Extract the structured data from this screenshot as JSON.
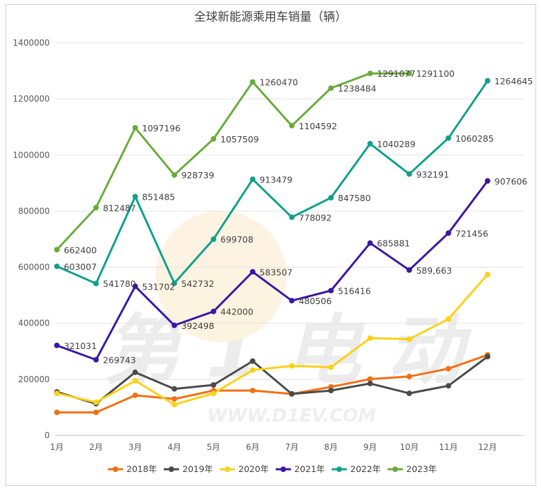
{
  "chart_data": {
    "type": "line",
    "title": "全球新能源乘用车销量（辆）",
    "categories": [
      "1月",
      "2月",
      "3月",
      "4月",
      "5月",
      "6月",
      "7月",
      "8月",
      "9月",
      "10月",
      "11月",
      "12月"
    ],
    "ylim": [
      0,
      1400000
    ],
    "yticks": [
      "0",
      "200000",
      "400000",
      "600000",
      "800000",
      "1000000",
      "1200000",
      "1400000"
    ],
    "grid": true,
    "legend_position": "bottom",
    "series": [
      {
        "name": "2018年",
        "color": "#f36f12",
        "values": [
          82000,
          82000,
          143000,
          130000,
          160000,
          160000,
          148000,
          173000,
          201000,
          210000,
          238000,
          287000
        ]
      },
      {
        "name": "2019年",
        "color": "#4a4a4a",
        "values": [
          155000,
          113000,
          225000,
          166000,
          180000,
          265000,
          148000,
          160000,
          185000,
          150000,
          177000,
          281000
        ]
      },
      {
        "name": "2020年",
        "color": "#fcd116",
        "values": [
          150000,
          118000,
          195000,
          110000,
          150000,
          233000,
          248000,
          243000,
          347000,
          343000,
          415000,
          574000
        ]
      },
      {
        "name": "2021年",
        "color": "#3b17a4",
        "values": [
          321031,
          269743,
          531702,
          392498,
          442000,
          583507,
          480506,
          516416,
          685881,
          589663,
          721456,
          907606
        ]
      },
      {
        "name": "2022年",
        "color": "#10a08c",
        "values": [
          603007,
          541780,
          851485,
          542732,
          699708,
          913479,
          778092,
          847580,
          1040289,
          932191,
          1060285,
          1264645
        ]
      },
      {
        "name": "2023年",
        "color": "#6aab3b",
        "values": [
          662400,
          812487,
          1097196,
          928739,
          1057509,
          1260470,
          1104592,
          1238484,
          1291077,
          1291100,
          null,
          null
        ]
      }
    ],
    "data_labels": [
      {
        "series": 3,
        "labels": [
          "321031",
          "269743",
          "531702",
          "392498",
          "442000",
          "583507",
          "480506",
          "516416",
          "685881",
          "589,663",
          "721456",
          "907606"
        ]
      },
      {
        "series": 4,
        "labels": [
          "603007",
          "541780",
          "851485",
          "542732",
          "699708",
          "913479",
          "778092",
          "847580",
          "1040289",
          "932191",
          "1060285",
          "1264645"
        ]
      },
      {
        "series": 5,
        "labels": [
          "662400",
          "812487",
          "1097196",
          "928739",
          "1057509",
          "1260470",
          "1104592",
          "1238484",
          "1291077",
          "1291100"
        ]
      }
    ]
  },
  "watermark": {
    "text": "第1电动",
    "url_text": "WWW.D1EV.COM"
  }
}
